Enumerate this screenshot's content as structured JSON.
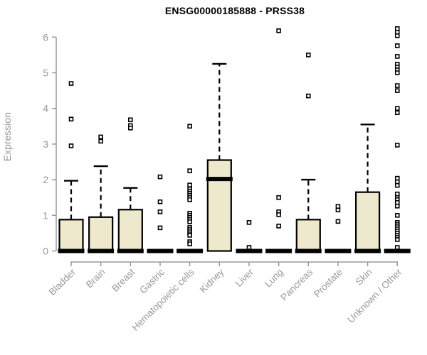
{
  "chart_data": {
    "type": "boxplot",
    "title": "ENSG00000185888 - PRSS38",
    "ylabel": "Expression",
    "xlabel": "",
    "ylim": [
      0,
      6.3
    ],
    "yticks": [
      0,
      1,
      2,
      3,
      4,
      5,
      6
    ],
    "grid": false,
    "legend": "none",
    "categories": [
      "Bladder",
      "Brain",
      "Breast",
      "Gastric",
      "Hematopoietic cells",
      "Kidney",
      "Liver",
      "Lung",
      "Pancreas",
      "Prostate",
      "Skin",
      "Unknown / Other"
    ],
    "series": [
      {
        "name": "Bladder",
        "low": 0,
        "q1": 0,
        "median": 0,
        "q3": 0.88,
        "high": 1.97,
        "outliers": [
          4.7,
          3.7,
          2.95
        ]
      },
      {
        "name": "Brain",
        "low": 0,
        "q1": 0,
        "median": 0,
        "q3": 0.95,
        "high": 2.38,
        "outliers": [
          3.2,
          3.08
        ]
      },
      {
        "name": "Breast",
        "low": 0,
        "q1": 0,
        "median": 0,
        "q3": 1.16,
        "high": 1.77,
        "outliers": [
          3.68,
          3.52,
          3.45
        ]
      },
      {
        "name": "Gastric",
        "low": 0,
        "q1": 0,
        "median": 0,
        "q3": 0,
        "high": 0,
        "outliers": [
          2.08,
          1.38,
          1.1,
          0.65
        ]
      },
      {
        "name": "Hematopoietic cells",
        "low": 0,
        "q1": 0,
        "median": 0,
        "q3": 0,
        "high": 0,
        "outliers": [
          3.5,
          2.25,
          1.85,
          1.74,
          1.68,
          1.62,
          1.56,
          1.5,
          1.44,
          1.06,
          1.0,
          0.94,
          0.88,
          0.82,
          0.66,
          0.6,
          0.54,
          0.48,
          0.44,
          0.26,
          0.2
        ]
      },
      {
        "name": "Kidney",
        "low": 0,
        "q1": 0,
        "median": 2.02,
        "q3": 2.55,
        "high": 5.25,
        "outliers": []
      },
      {
        "name": "Liver",
        "low": 0,
        "q1": 0,
        "median": 0,
        "q3": 0,
        "high": 0,
        "outliers": [
          0.8,
          0.1
        ]
      },
      {
        "name": "Lung",
        "low": 0,
        "q1": 0,
        "median": 0,
        "q3": 0,
        "high": 0,
        "outliers": [
          6.18,
          1.5,
          1.1,
          1.02,
          0.7
        ]
      },
      {
        "name": "Pancreas",
        "low": 0,
        "q1": 0,
        "median": 0,
        "q3": 0.88,
        "high": 2.0,
        "outliers": [
          5.5,
          4.35
        ]
      },
      {
        "name": "Prostate",
        "low": 0,
        "q1": 0,
        "median": 0,
        "q3": 0,
        "high": 0,
        "outliers": [
          1.25,
          1.15,
          0.83
        ]
      },
      {
        "name": "Skin",
        "low": 0,
        "q1": 0,
        "median": 0,
        "q3": 1.65,
        "high": 3.55,
        "outliers": []
      },
      {
        "name": "Unknown / Other",
        "low": 0,
        "q1": 0,
        "median": 0,
        "q3": 0,
        "high": 0,
        "outliers": [
          6.24,
          6.14,
          6.04,
          5.76,
          5.46,
          5.24,
          5.16,
          5.08,
          5.0,
          4.64,
          4.5,
          4.0,
          3.88,
          2.97,
          2.04,
          1.94,
          1.84,
          1.6,
          1.5,
          1.44,
          1.36,
          1.26,
          1.0,
          0.8,
          0.74,
          0.68,
          0.62,
          0.56,
          0.5,
          0.44,
          0.38,
          0.32,
          0.1
        ]
      }
    ]
  },
  "colors": {
    "box_fill": "#EEE8CD",
    "box_stroke": "#000000",
    "axis": "#999999",
    "label": "#999999",
    "title": "#000000",
    "background": "#FFFFFF"
  }
}
